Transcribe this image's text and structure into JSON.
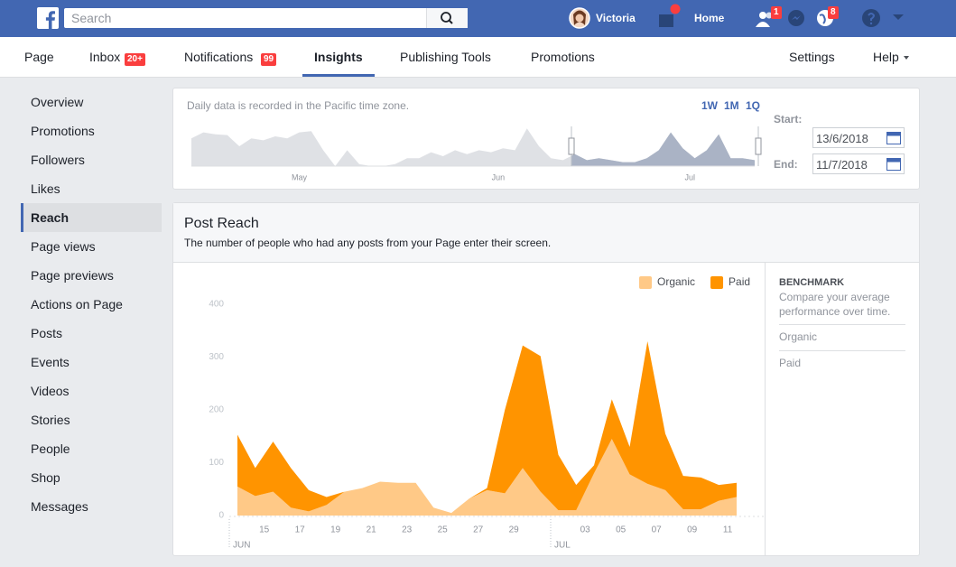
{
  "topbar": {
    "search_placeholder": "Search",
    "user": "Victoria",
    "home": "Home",
    "friends_badge": "1",
    "notifications_badge": "8"
  },
  "tabs": {
    "page": "Page",
    "inbox": "Inbox",
    "inbox_badge": "20+",
    "notifications": "Notifications",
    "notifications_badge": "99",
    "insights": "Insights",
    "publishing": "Publishing Tools",
    "promotions": "Promotions",
    "settings": "Settings",
    "help": "Help"
  },
  "sidebar": {
    "items": [
      "Overview",
      "Promotions",
      "Followers",
      "Likes",
      "Reach",
      "Page views",
      "Page previews",
      "Actions on Page",
      "Posts",
      "Events",
      "Videos",
      "Stories",
      "People",
      "Shop",
      "Messages"
    ],
    "selected": "Reach"
  },
  "date_panel": {
    "note": "Daily data is recorded in the Pacific time zone.",
    "ranges": [
      "1W",
      "1M",
      "1Q"
    ],
    "start_label": "Start:",
    "start": "13/6/2018",
    "end_label": "End:",
    "end": "11/7/2018"
  },
  "chart_data": [
    {
      "type": "area",
      "color": "#dfe1e5",
      "selected_color": "#aab3c5",
      "values": [
        70,
        85,
        80,
        78,
        50,
        70,
        65,
        75,
        70,
        85,
        88,
        40,
        0,
        40,
        5,
        0,
        0,
        5,
        20,
        20,
        35,
        25,
        40,
        30,
        40,
        35,
        45,
        40,
        95,
        50,
        20,
        15,
        30,
        15,
        20,
        15,
        10,
        10,
        20,
        40,
        85,
        45,
        20,
        40,
        80,
        20,
        20,
        15
      ],
      "ylim": [
        0,
        100
      ],
      "xticks": [
        {
          "value": 9,
          "label": "May"
        },
        {
          "value": 25.6,
          "label": "Jun"
        },
        {
          "value": 41.6,
          "label": "Jul"
        }
      ]
    },
    {
      "type": "area",
      "stacked": true,
      "title": "Post Reach",
      "subtitle": "The number of people who had any posts from your Page enter their screen.",
      "categories": [
        null,
        null,
        "15",
        null,
        "17",
        null,
        "19",
        null,
        "21",
        null,
        "23",
        null,
        "25",
        null,
        "27",
        null,
        "29",
        null,
        null,
        null,
        "03",
        null,
        "05",
        null,
        "07",
        null,
        "09",
        null,
        "11"
      ],
      "series": [
        {
          "name": "Organic",
          "color": "#ffc987",
          "values": [
            55,
            37,
            45,
            15,
            8,
            20,
            45,
            52,
            64,
            62,
            62,
            15,
            5,
            32,
            48,
            42,
            90,
            45,
            10,
            10,
            80,
            145,
            78,
            60,
            48,
            12,
            12,
            28,
            35
          ]
        },
        {
          "name": "Paid",
          "color": "#ff9400",
          "values": [
            98,
            53,
            95,
            75,
            40,
            15,
            0,
            0,
            0,
            0,
            0,
            0,
            0,
            0,
            4,
            158,
            232,
            257,
            105,
            48,
            15,
            75,
            52,
            270,
            107,
            63,
            60,
            30,
            27
          ]
        }
      ],
      "ylim": [
        0,
        400
      ],
      "yticks": [
        0,
        100,
        200,
        300,
        400
      ],
      "grid": false,
      "annotations": [
        "JUN",
        "JUL"
      ],
      "legend": "top-right"
    }
  ],
  "benchmark": {
    "title": "BENCHMARK",
    "text": "Compare your average performance over time.",
    "items": [
      "Organic",
      "Paid"
    ]
  }
}
